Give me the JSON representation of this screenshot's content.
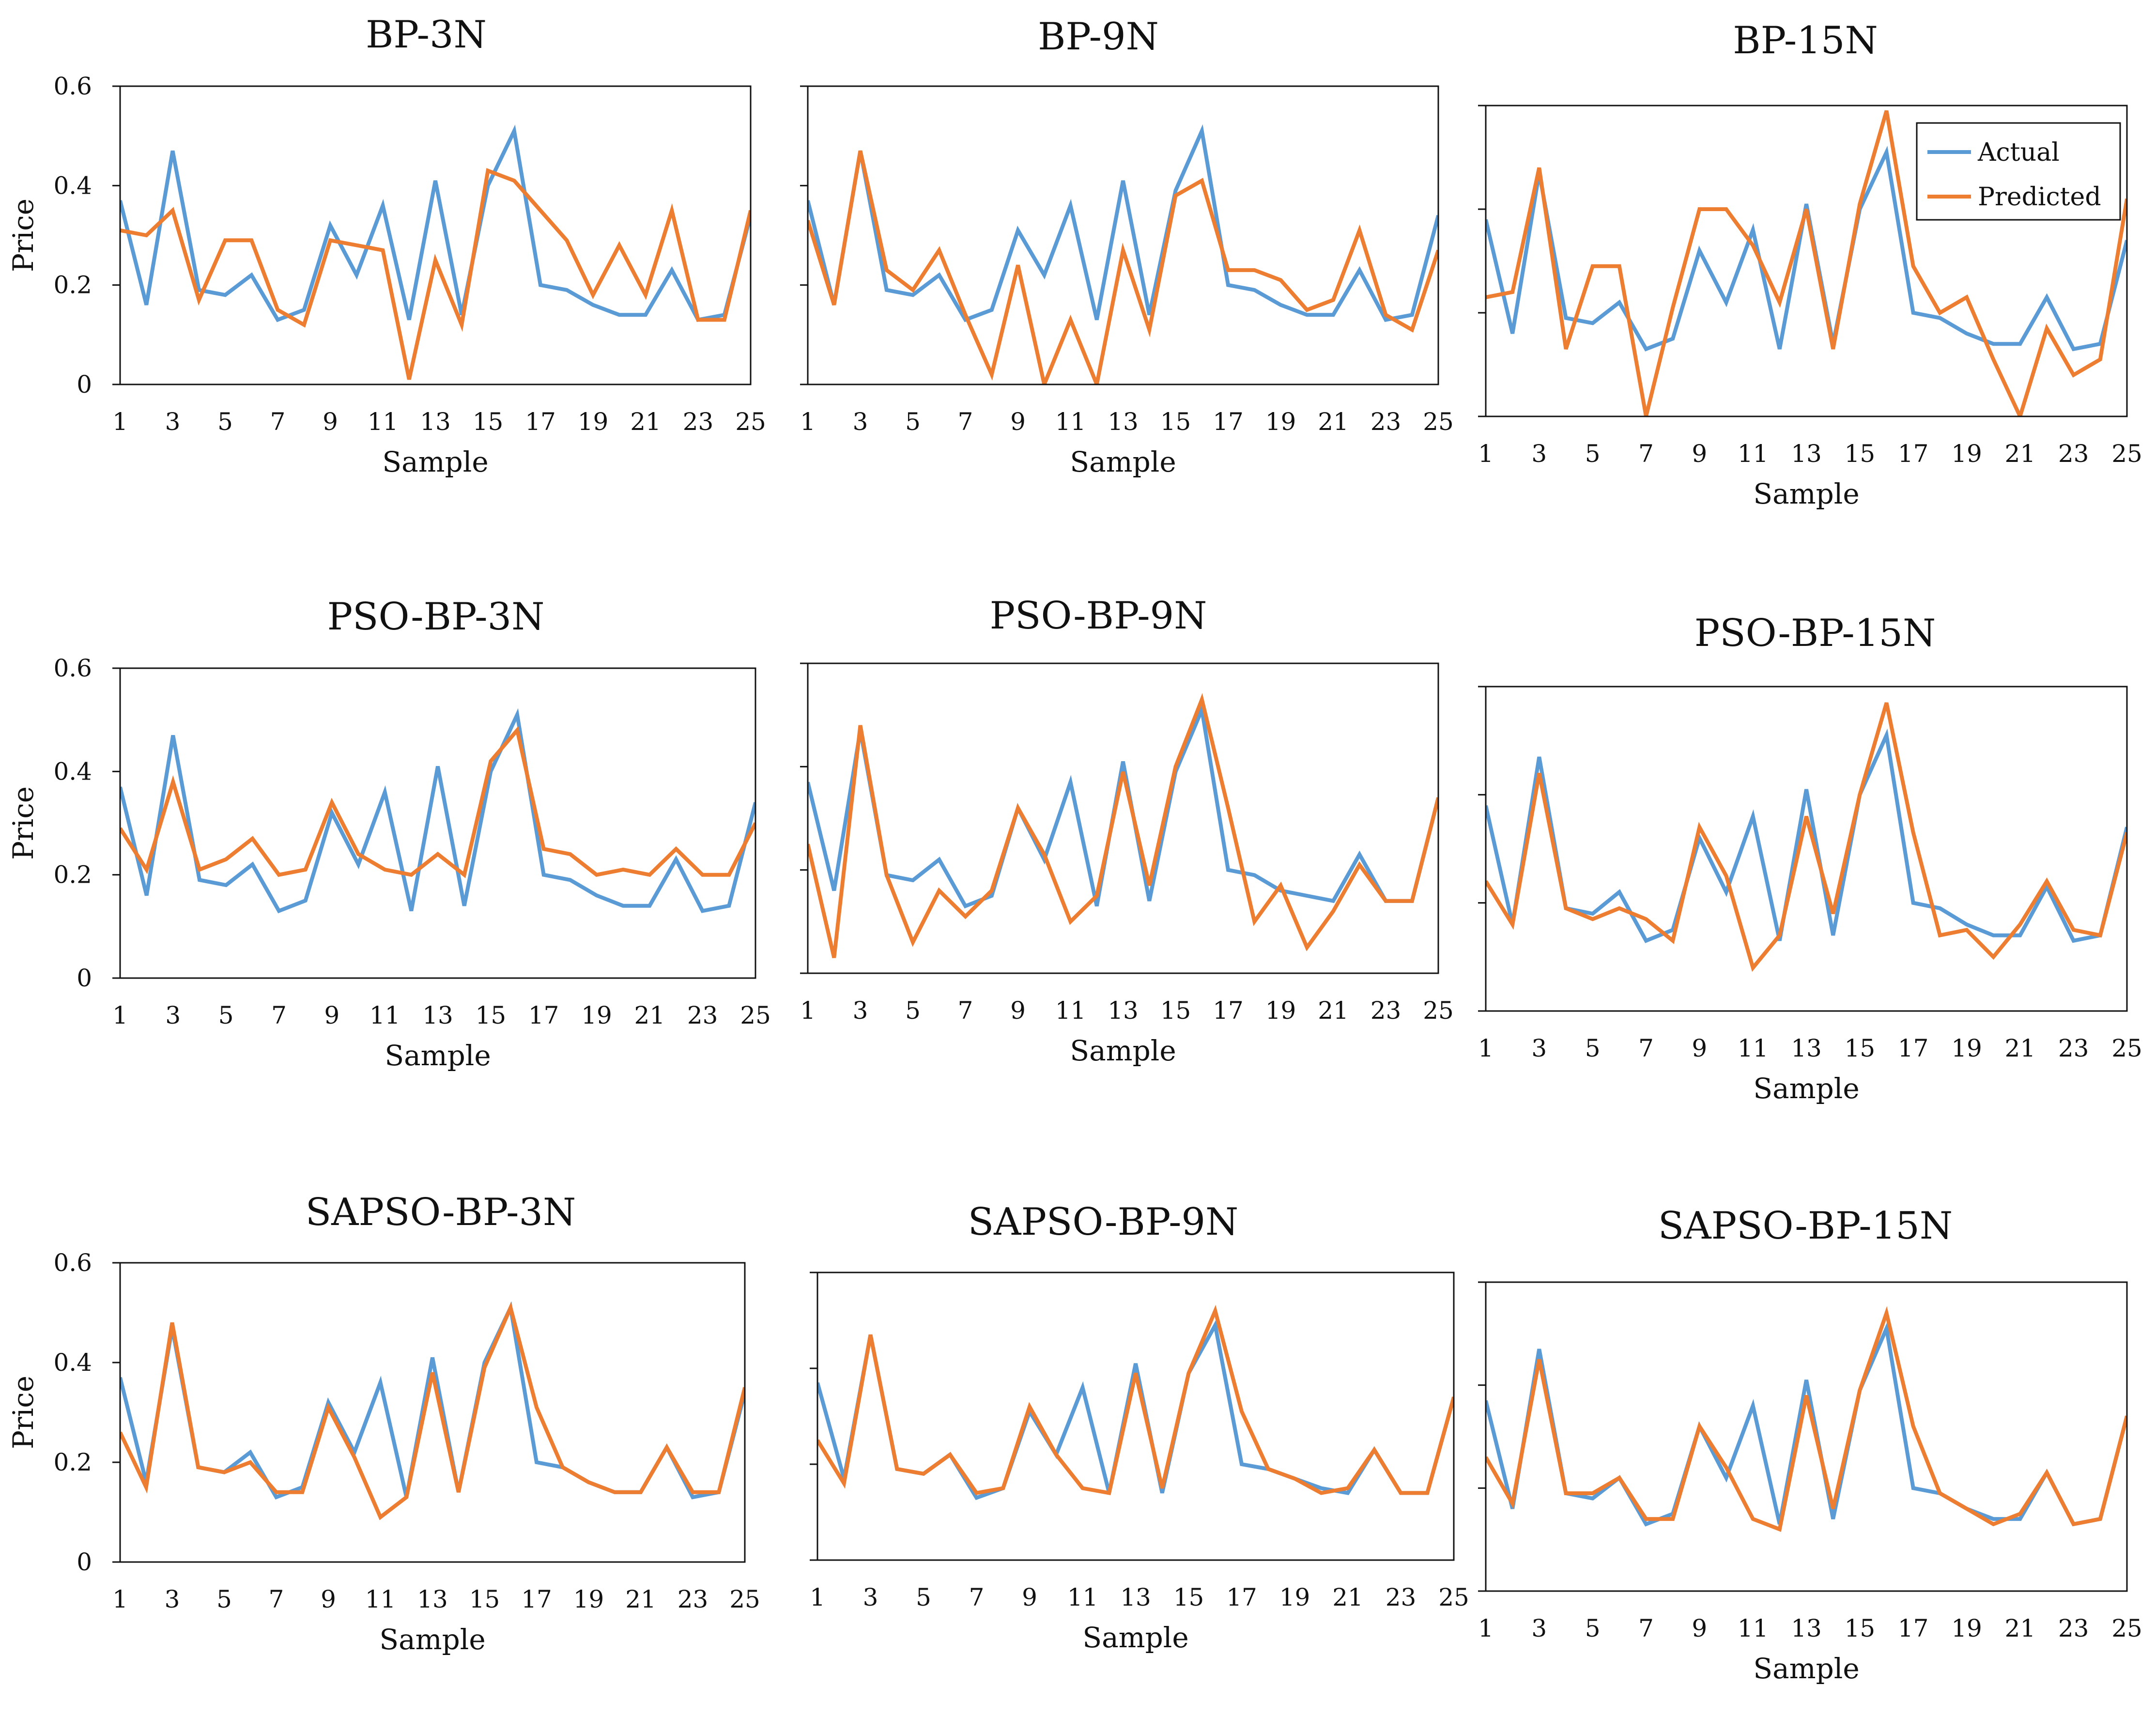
{
  "figure": {
    "legend": [
      "Actual",
      "Predicted"
    ],
    "colors": {
      "actual": "#5b9bd5",
      "predicted": "#ed7d31",
      "axis": "#111111"
    }
  },
  "chart_data": [
    {
      "type": "line",
      "title": "BP-3N",
      "xlabel": "Sample",
      "ylabel": "Price",
      "ylim": [
        0,
        0.6
      ],
      "yticks": [
        "0",
        "0.2",
        "0.4",
        "0.6"
      ],
      "show_ytick_labels": true,
      "x": [
        1,
        2,
        3,
        4,
        5,
        6,
        7,
        8,
        9,
        10,
        11,
        12,
        13,
        14,
        15,
        16,
        17,
        18,
        19,
        20,
        21,
        22,
        23,
        24,
        25
      ],
      "xtick_labels": [
        "1",
        "3",
        "5",
        "7",
        "9",
        "11",
        "13",
        "15",
        "17",
        "19",
        "21",
        "23",
        "25"
      ],
      "series": [
        {
          "name": "Actual",
          "values": [
            0.37,
            0.16,
            0.47,
            0.19,
            0.18,
            0.22,
            0.13,
            0.15,
            0.32,
            0.22,
            0.36,
            0.13,
            0.41,
            0.14,
            0.4,
            0.51,
            0.2,
            0.19,
            0.16,
            0.14,
            0.14,
            0.23,
            0.13,
            0.14,
            0.34
          ]
        },
        {
          "name": "Predicted",
          "values": [
            0.31,
            0.3,
            0.35,
            0.17,
            0.29,
            0.29,
            0.15,
            0.12,
            0.29,
            0.28,
            0.27,
            0.01,
            0.25,
            0.12,
            0.43,
            0.41,
            0.35,
            0.29,
            0.18,
            0.28,
            0.18,
            0.35,
            0.13,
            0.13,
            0.35
          ]
        }
      ]
    },
    {
      "type": "line",
      "title": "BP-9N",
      "xlabel": "Sample",
      "ylabel": "",
      "ylim": [
        0,
        0.6
      ],
      "yticks": [
        "0",
        "0.2",
        "0.4",
        "0.6"
      ],
      "show_ytick_labels": false,
      "x": [
        1,
        2,
        3,
        4,
        5,
        6,
        7,
        8,
        9,
        10,
        11,
        12,
        13,
        14,
        15,
        16,
        17,
        18,
        19,
        20,
        21,
        22,
        23,
        24,
        25
      ],
      "xtick_labels": [
        "1",
        "3",
        "5",
        "7",
        "9",
        "11",
        "13",
        "15",
        "17",
        "19",
        "21",
        "23",
        "25"
      ],
      "series": [
        {
          "name": "Actual",
          "values": [
            0.37,
            0.16,
            0.47,
            0.19,
            0.18,
            0.22,
            0.13,
            0.15,
            0.31,
            0.22,
            0.36,
            0.13,
            0.41,
            0.14,
            0.39,
            0.51,
            0.2,
            0.19,
            0.16,
            0.14,
            0.14,
            0.23,
            0.13,
            0.14,
            0.34
          ]
        },
        {
          "name": "Predicted",
          "values": [
            0.33,
            0.16,
            0.47,
            0.23,
            0.19,
            0.27,
            0.14,
            0.02,
            0.24,
            0.0,
            0.13,
            0.0,
            0.27,
            0.11,
            0.38,
            0.41,
            0.23,
            0.23,
            0.21,
            0.15,
            0.17,
            0.31,
            0.14,
            0.11,
            0.27
          ]
        }
      ]
    },
    {
      "type": "line",
      "title": "BP-15N",
      "xlabel": "Sample",
      "ylabel": "",
      "ylim": [
        0,
        0.6
      ],
      "yticks": [
        "0",
        "0.2",
        "0.4",
        "0.6"
      ],
      "show_ytick_labels": false,
      "legend": {
        "position": "top-right"
      },
      "x": [
        1,
        2,
        3,
        4,
        5,
        6,
        7,
        8,
        9,
        10,
        11,
        12,
        13,
        14,
        15,
        16,
        17,
        18,
        19,
        20,
        21,
        22,
        23,
        24,
        25
      ],
      "xtick_labels": [
        "1",
        "3",
        "5",
        "7",
        "9",
        "11",
        "13",
        "15",
        "17",
        "19",
        "21",
        "23",
        "25"
      ],
      "series": [
        {
          "name": "Actual",
          "values": [
            0.38,
            0.16,
            0.47,
            0.19,
            0.18,
            0.22,
            0.13,
            0.15,
            0.32,
            0.22,
            0.36,
            0.13,
            0.41,
            0.14,
            0.4,
            0.51,
            0.2,
            0.19,
            0.16,
            0.14,
            0.14,
            0.23,
            0.13,
            0.14,
            0.34
          ]
        },
        {
          "name": "Predicted",
          "values": [
            0.23,
            0.24,
            0.48,
            0.13,
            0.29,
            0.29,
            0.0,
            0.21,
            0.4,
            0.4,
            0.33,
            0.22,
            0.4,
            0.13,
            0.41,
            0.59,
            0.29,
            0.2,
            0.23,
            0.11,
            0.0,
            0.17,
            0.08,
            0.11,
            0.42
          ]
        }
      ]
    },
    {
      "type": "line",
      "title": "PSO-BP-3N",
      "xlabel": "Sample",
      "ylabel": "Price",
      "ylim": [
        0,
        0.6
      ],
      "yticks": [
        "0",
        "0.2",
        "0.4",
        "0.6"
      ],
      "show_ytick_labels": true,
      "x": [
        1,
        2,
        3,
        4,
        5,
        6,
        7,
        8,
        9,
        10,
        11,
        12,
        13,
        14,
        15,
        16,
        17,
        18,
        19,
        20,
        21,
        22,
        23,
        24,
        25
      ],
      "xtick_labels": [
        "1",
        "3",
        "5",
        "7",
        "9",
        "11",
        "13",
        "15",
        "17",
        "19",
        "21",
        "23",
        "25"
      ],
      "series": [
        {
          "name": "Actual",
          "values": [
            0.37,
            0.16,
            0.47,
            0.19,
            0.18,
            0.22,
            0.13,
            0.15,
            0.32,
            0.22,
            0.36,
            0.13,
            0.41,
            0.14,
            0.4,
            0.51,
            0.2,
            0.19,
            0.16,
            0.14,
            0.14,
            0.23,
            0.13,
            0.14,
            0.34
          ]
        },
        {
          "name": "Predicted",
          "values": [
            0.29,
            0.21,
            0.38,
            0.21,
            0.23,
            0.27,
            0.2,
            0.21,
            0.34,
            0.24,
            0.21,
            0.2,
            0.24,
            0.2,
            0.42,
            0.48,
            0.25,
            0.24,
            0.2,
            0.21,
            0.2,
            0.25,
            0.2,
            0.2,
            0.3
          ]
        }
      ]
    },
    {
      "type": "line",
      "title": "PSO-BP-9N",
      "xlabel": "Sample",
      "ylabel": "",
      "ylim": [
        0,
        0.6
      ],
      "yticks": [
        "0",
        "0.2",
        "0.4",
        "0.6"
      ],
      "show_ytick_labels": false,
      "x": [
        1,
        2,
        3,
        4,
        5,
        6,
        7,
        8,
        9,
        10,
        11,
        12,
        13,
        14,
        15,
        16,
        17,
        18,
        19,
        20,
        21,
        22,
        23,
        24,
        25
      ],
      "xtick_labels": [
        "1",
        "3",
        "5",
        "7",
        "9",
        "11",
        "13",
        "15",
        "17",
        "19",
        "21",
        "23",
        "25"
      ],
      "series": [
        {
          "name": "Actual",
          "values": [
            0.37,
            0.16,
            0.47,
            0.19,
            0.18,
            0.22,
            0.13,
            0.15,
            0.32,
            0.22,
            0.37,
            0.13,
            0.41,
            0.14,
            0.39,
            0.51,
            0.2,
            0.19,
            0.16,
            0.15,
            0.14,
            0.23,
            0.14,
            0.14,
            0.34
          ]
        },
        {
          "name": "Predicted",
          "values": [
            0.25,
            0.03,
            0.48,
            0.19,
            0.06,
            0.16,
            0.11,
            0.16,
            0.32,
            0.23,
            0.1,
            0.15,
            0.39,
            0.17,
            0.4,
            0.53,
            0.32,
            0.1,
            0.17,
            0.05,
            0.12,
            0.21,
            0.14,
            0.14,
            0.34
          ]
        }
      ]
    },
    {
      "type": "line",
      "title": "PSO-BP-15N",
      "xlabel": "Sample",
      "ylabel": "",
      "ylim": [
        0,
        0.6
      ],
      "yticks": [
        "0",
        "0.2",
        "0.4",
        "0.6"
      ],
      "show_ytick_labels": false,
      "x": [
        1,
        2,
        3,
        4,
        5,
        6,
        7,
        8,
        9,
        10,
        11,
        12,
        13,
        14,
        15,
        16,
        17,
        18,
        19,
        20,
        21,
        22,
        23,
        24,
        25
      ],
      "xtick_labels": [
        "1",
        "3",
        "5",
        "7",
        "9",
        "11",
        "13",
        "15",
        "17",
        "19",
        "21",
        "23",
        "25"
      ],
      "series": [
        {
          "name": "Actual",
          "values": [
            0.38,
            0.16,
            0.47,
            0.19,
            0.18,
            0.22,
            0.13,
            0.15,
            0.32,
            0.22,
            0.36,
            0.13,
            0.41,
            0.14,
            0.4,
            0.51,
            0.2,
            0.19,
            0.16,
            0.14,
            0.14,
            0.23,
            0.13,
            0.14,
            0.34
          ]
        },
        {
          "name": "Predicted",
          "values": [
            0.24,
            0.16,
            0.44,
            0.19,
            0.17,
            0.19,
            0.17,
            0.13,
            0.34,
            0.25,
            0.08,
            0.14,
            0.36,
            0.18,
            0.4,
            0.57,
            0.33,
            0.14,
            0.15,
            0.1,
            0.16,
            0.24,
            0.15,
            0.14,
            0.33
          ]
        }
      ]
    },
    {
      "type": "line",
      "title": "SAPSO-BP-3N",
      "xlabel": "Sample",
      "ylabel": "Price",
      "ylim": [
        0,
        0.6
      ],
      "yticks": [
        "0",
        "0.2",
        "0.4",
        "0.6"
      ],
      "show_ytick_labels": true,
      "x": [
        1,
        2,
        3,
        4,
        5,
        6,
        7,
        8,
        9,
        10,
        11,
        12,
        13,
        14,
        15,
        16,
        17,
        18,
        19,
        20,
        21,
        22,
        23,
        24,
        25
      ],
      "xtick_labels": [
        "1",
        "3",
        "5",
        "7",
        "9",
        "11",
        "13",
        "15",
        "17",
        "19",
        "21",
        "23",
        "25"
      ],
      "series": [
        {
          "name": "Actual",
          "values": [
            0.37,
            0.16,
            0.47,
            0.19,
            0.18,
            0.22,
            0.13,
            0.15,
            0.32,
            0.22,
            0.36,
            0.13,
            0.41,
            0.14,
            0.4,
            0.51,
            0.2,
            0.19,
            0.16,
            0.14,
            0.14,
            0.23,
            0.13,
            0.14,
            0.34
          ]
        },
        {
          "name": "Predicted",
          "values": [
            0.26,
            0.15,
            0.48,
            0.19,
            0.18,
            0.2,
            0.14,
            0.14,
            0.31,
            0.21,
            0.09,
            0.13,
            0.38,
            0.14,
            0.39,
            0.51,
            0.31,
            0.19,
            0.16,
            0.14,
            0.14,
            0.23,
            0.14,
            0.14,
            0.35
          ]
        }
      ]
    },
    {
      "type": "line",
      "title": "SAPSO-BP-9N",
      "xlabel": "Sample",
      "ylabel": "",
      "ylim": [
        0,
        0.6
      ],
      "yticks": [
        "0",
        "0.2",
        "0.4",
        "0.6"
      ],
      "show_ytick_labels": false,
      "x": [
        1,
        2,
        3,
        4,
        5,
        6,
        7,
        8,
        9,
        10,
        11,
        12,
        13,
        14,
        15,
        16,
        17,
        18,
        19,
        20,
        21,
        22,
        23,
        24,
        25
      ],
      "xtick_labels": [
        "1",
        "3",
        "5",
        "7",
        "9",
        "11",
        "13",
        "15",
        "17",
        "19",
        "21",
        "23",
        "25"
      ],
      "series": [
        {
          "name": "Actual",
          "values": [
            0.37,
            0.17,
            0.47,
            0.19,
            0.18,
            0.22,
            0.13,
            0.15,
            0.31,
            0.22,
            0.36,
            0.14,
            0.41,
            0.14,
            0.39,
            0.49,
            0.2,
            0.19,
            0.17,
            0.15,
            0.14,
            0.23,
            0.14,
            0.14,
            0.34
          ]
        },
        {
          "name": "Predicted",
          "values": [
            0.25,
            0.16,
            0.47,
            0.19,
            0.18,
            0.22,
            0.14,
            0.15,
            0.32,
            0.22,
            0.15,
            0.14,
            0.39,
            0.15,
            0.39,
            0.52,
            0.31,
            0.19,
            0.17,
            0.14,
            0.15,
            0.23,
            0.14,
            0.14,
            0.34
          ]
        }
      ]
    },
    {
      "type": "line",
      "title": "SAPSO-BP-15N",
      "xlabel": "Sample",
      "ylabel": "",
      "ylim": [
        0,
        0.6
      ],
      "yticks": [
        "0",
        "0.2",
        "0.4",
        "0.6"
      ],
      "show_ytick_labels": false,
      "x": [
        1,
        2,
        3,
        4,
        5,
        6,
        7,
        8,
        9,
        10,
        11,
        12,
        13,
        14,
        15,
        16,
        17,
        18,
        19,
        20,
        21,
        22,
        23,
        24,
        25
      ],
      "xtick_labels": [
        "1",
        "3",
        "5",
        "7",
        "9",
        "11",
        "13",
        "15",
        "17",
        "19",
        "21",
        "23",
        "25"
      ],
      "series": [
        {
          "name": "Actual",
          "values": [
            0.37,
            0.16,
            0.47,
            0.19,
            0.18,
            0.22,
            0.13,
            0.15,
            0.32,
            0.22,
            0.36,
            0.13,
            0.41,
            0.14,
            0.39,
            0.51,
            0.2,
            0.19,
            0.16,
            0.14,
            0.14,
            0.23,
            0.13,
            0.14,
            0.34
          ]
        },
        {
          "name": "Predicted",
          "values": [
            0.26,
            0.17,
            0.45,
            0.19,
            0.19,
            0.22,
            0.14,
            0.14,
            0.32,
            0.24,
            0.14,
            0.12,
            0.38,
            0.16,
            0.39,
            0.54,
            0.32,
            0.19,
            0.16,
            0.13,
            0.15,
            0.23,
            0.13,
            0.14,
            0.34
          ]
        }
      ]
    }
  ]
}
